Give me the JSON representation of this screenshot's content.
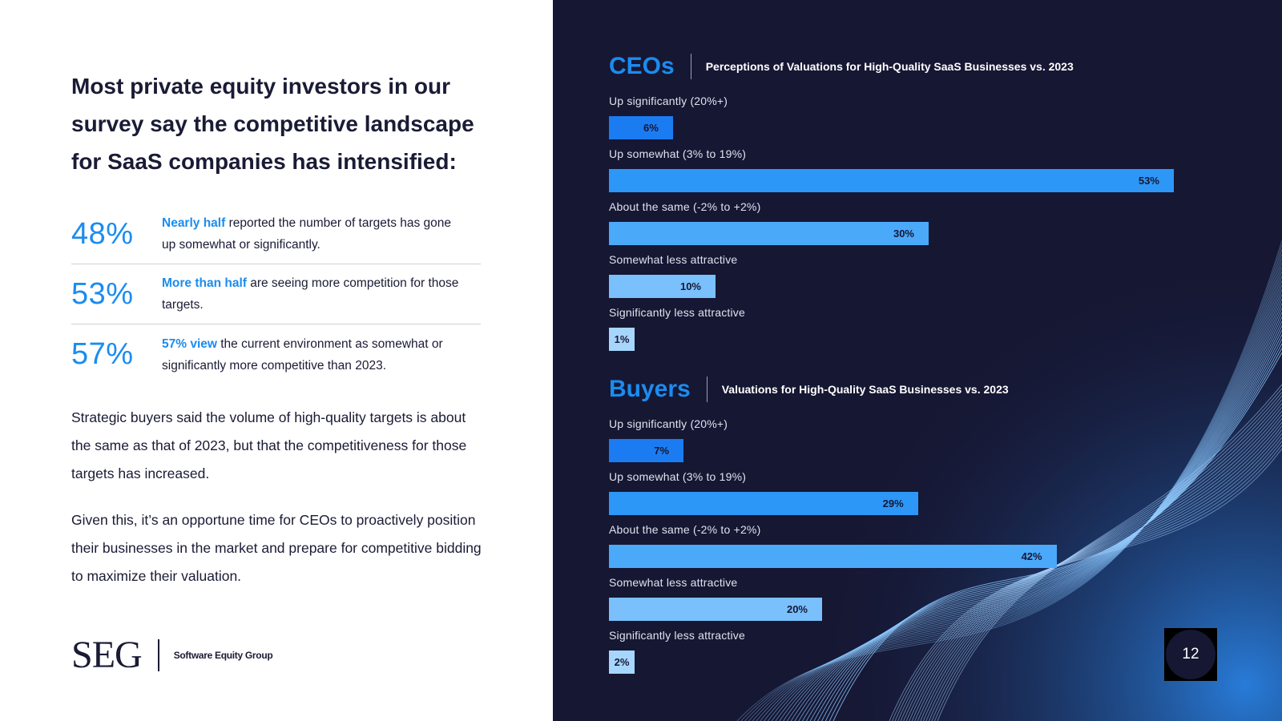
{
  "headline": "Most private equity investors in our survey say the competitive landscape for SaaS companies has intensified:",
  "stats": [
    {
      "pct": "48%",
      "highlight": "Nearly half",
      "text": " reported the number of targets has gone up somewhat or significantly."
    },
    {
      "pct": "53%",
      "highlight": "More than half",
      "text": " are seeing more competition for those targets."
    },
    {
      "pct": "57%",
      "highlight": "57% view",
      "text": " the current environment as somewhat or significantly more competitive than 2023."
    }
  ],
  "paragraphs": [
    "Strategic buyers said the volume of high-quality targets is about the same as that of 2023, but that the competitiveness for those targets has increased.",
    "Given this, it’s an opportune time for CEOs to proactively position their businesses in the market and prepare for competitive bidding to maximize their valuation."
  ],
  "logo": {
    "mark": "SEG",
    "text": "Software Equity Group"
  },
  "page_number": "12",
  "colors": {
    "accent": "#1b8cf0",
    "bar_shades": [
      "#1b7cf2",
      "#2d97f7",
      "#4ba9fa",
      "#79c0fc",
      "#a7d6fd"
    ],
    "panel_bg": "#161733"
  },
  "chart_data": [
    {
      "type": "bar",
      "orientation": "horizontal",
      "title": "CEOs",
      "subtitle": "Perceptions of Valuations for High-Quality SaaS Businesses vs. 2023",
      "categories": [
        "Up significantly (20%+)",
        "Up somewhat (3% to 19%)",
        "About the same (-2% to +2%)",
        "Somewhat less attractive",
        "Significantly less attractive"
      ],
      "values": [
        6,
        53,
        30,
        10,
        1
      ],
      "labels": [
        "6%",
        "53%",
        "30%",
        "10%",
        "1%"
      ],
      "unit": "%"
    },
    {
      "type": "bar",
      "orientation": "horizontal",
      "title": "Buyers",
      "subtitle": "Valuations for High-Quality SaaS Businesses vs. 2023",
      "categories": [
        "Up significantly (20%+)",
        "Up somewhat (3% to 19%)",
        "About the same (-2% to +2%)",
        "Somewhat less attractive",
        "Significantly less attractive"
      ],
      "values": [
        7,
        29,
        42,
        20,
        2
      ],
      "labels": [
        "7%",
        "29%",
        "42%",
        "20%",
        "2%"
      ],
      "unit": "%"
    }
  ]
}
